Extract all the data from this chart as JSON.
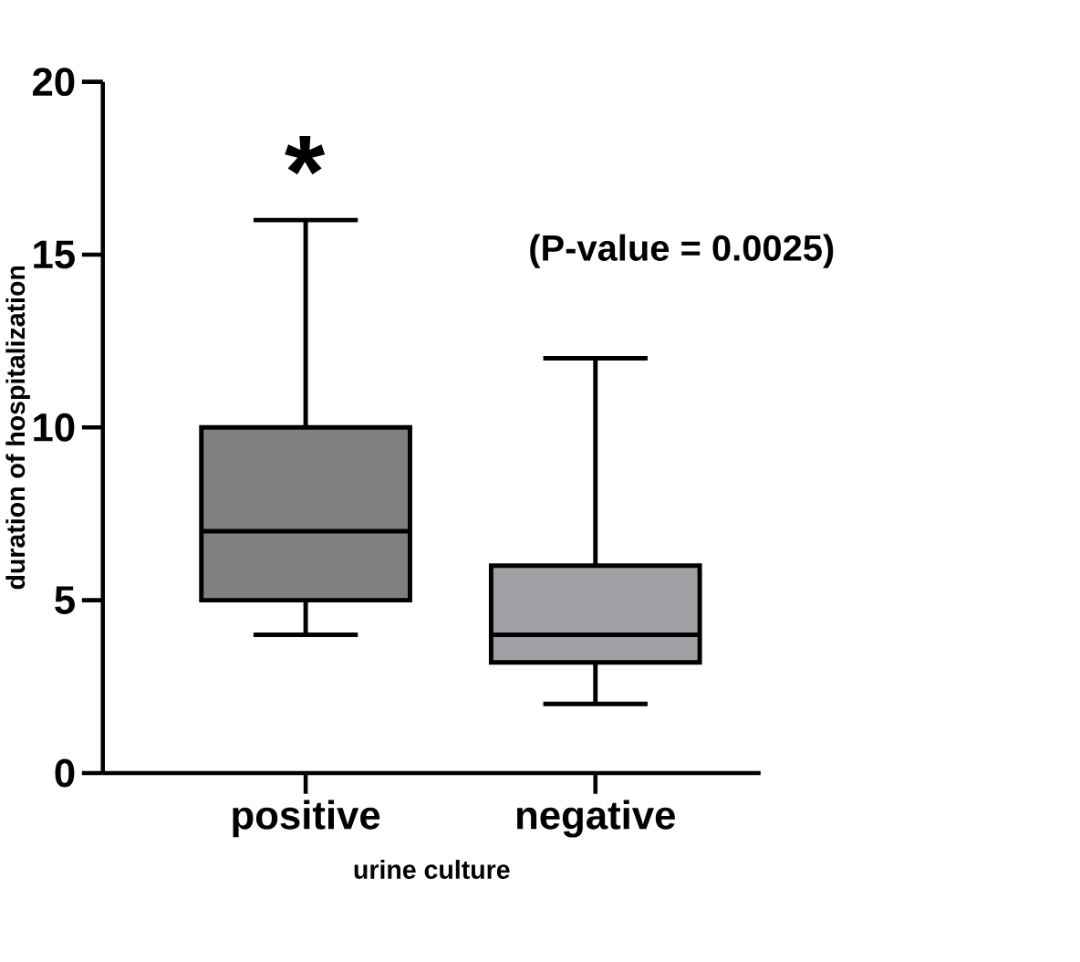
{
  "chart_data": {
    "type": "box",
    "xlabel": "urine culture",
    "ylabel": "duration of hospitalization",
    "categories": [
      "positive",
      "negative"
    ],
    "boxes": [
      {
        "low": 4,
        "q1": 5,
        "median": 7,
        "q3": 10,
        "high": 16
      },
      {
        "low": 2,
        "q1": 3.2,
        "median": 4,
        "q3": 6,
        "high": 12
      }
    ],
    "colors": [
      "#808080",
      "#a0a0a4"
    ],
    "ylim": [
      0,
      20
    ],
    "yticks": [
      0,
      5,
      10,
      15,
      20
    ],
    "annotations": [
      "*",
      "(P-value = 0.0025)"
    ]
  }
}
